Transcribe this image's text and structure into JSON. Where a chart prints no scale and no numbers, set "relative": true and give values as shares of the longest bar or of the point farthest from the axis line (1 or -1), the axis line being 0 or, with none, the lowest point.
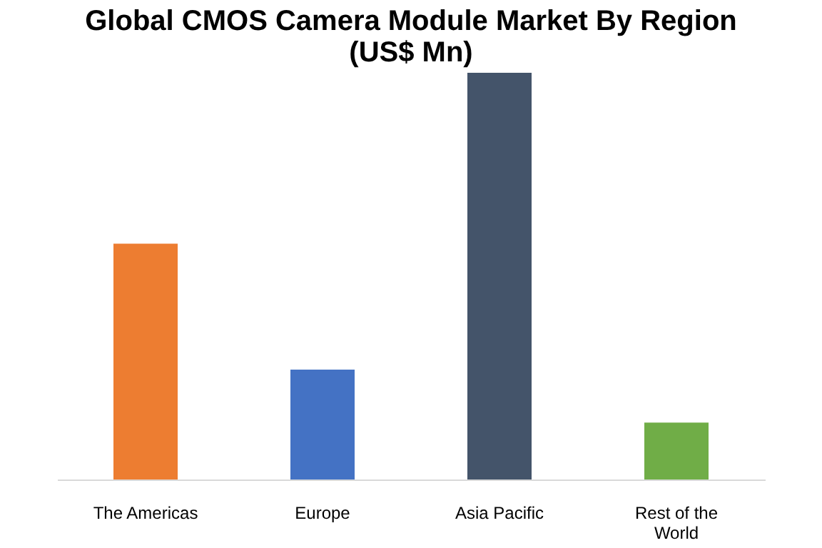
{
  "chart_data": {
    "type": "bar",
    "title": "Global CMOS Camera Module Market By Region (US$ Mn)",
    "categories": [
      "The Americas",
      "Europe",
      "Asia Pacific",
      "Rest of the World"
    ],
    "values": [
      0.58,
      0.27,
      1,
      0.14
    ],
    "colors": [
      "#ed7d31",
      "#4472c4",
      "#44546a",
      "#70ad47"
    ],
    "relative": true,
    "grid": false
  }
}
